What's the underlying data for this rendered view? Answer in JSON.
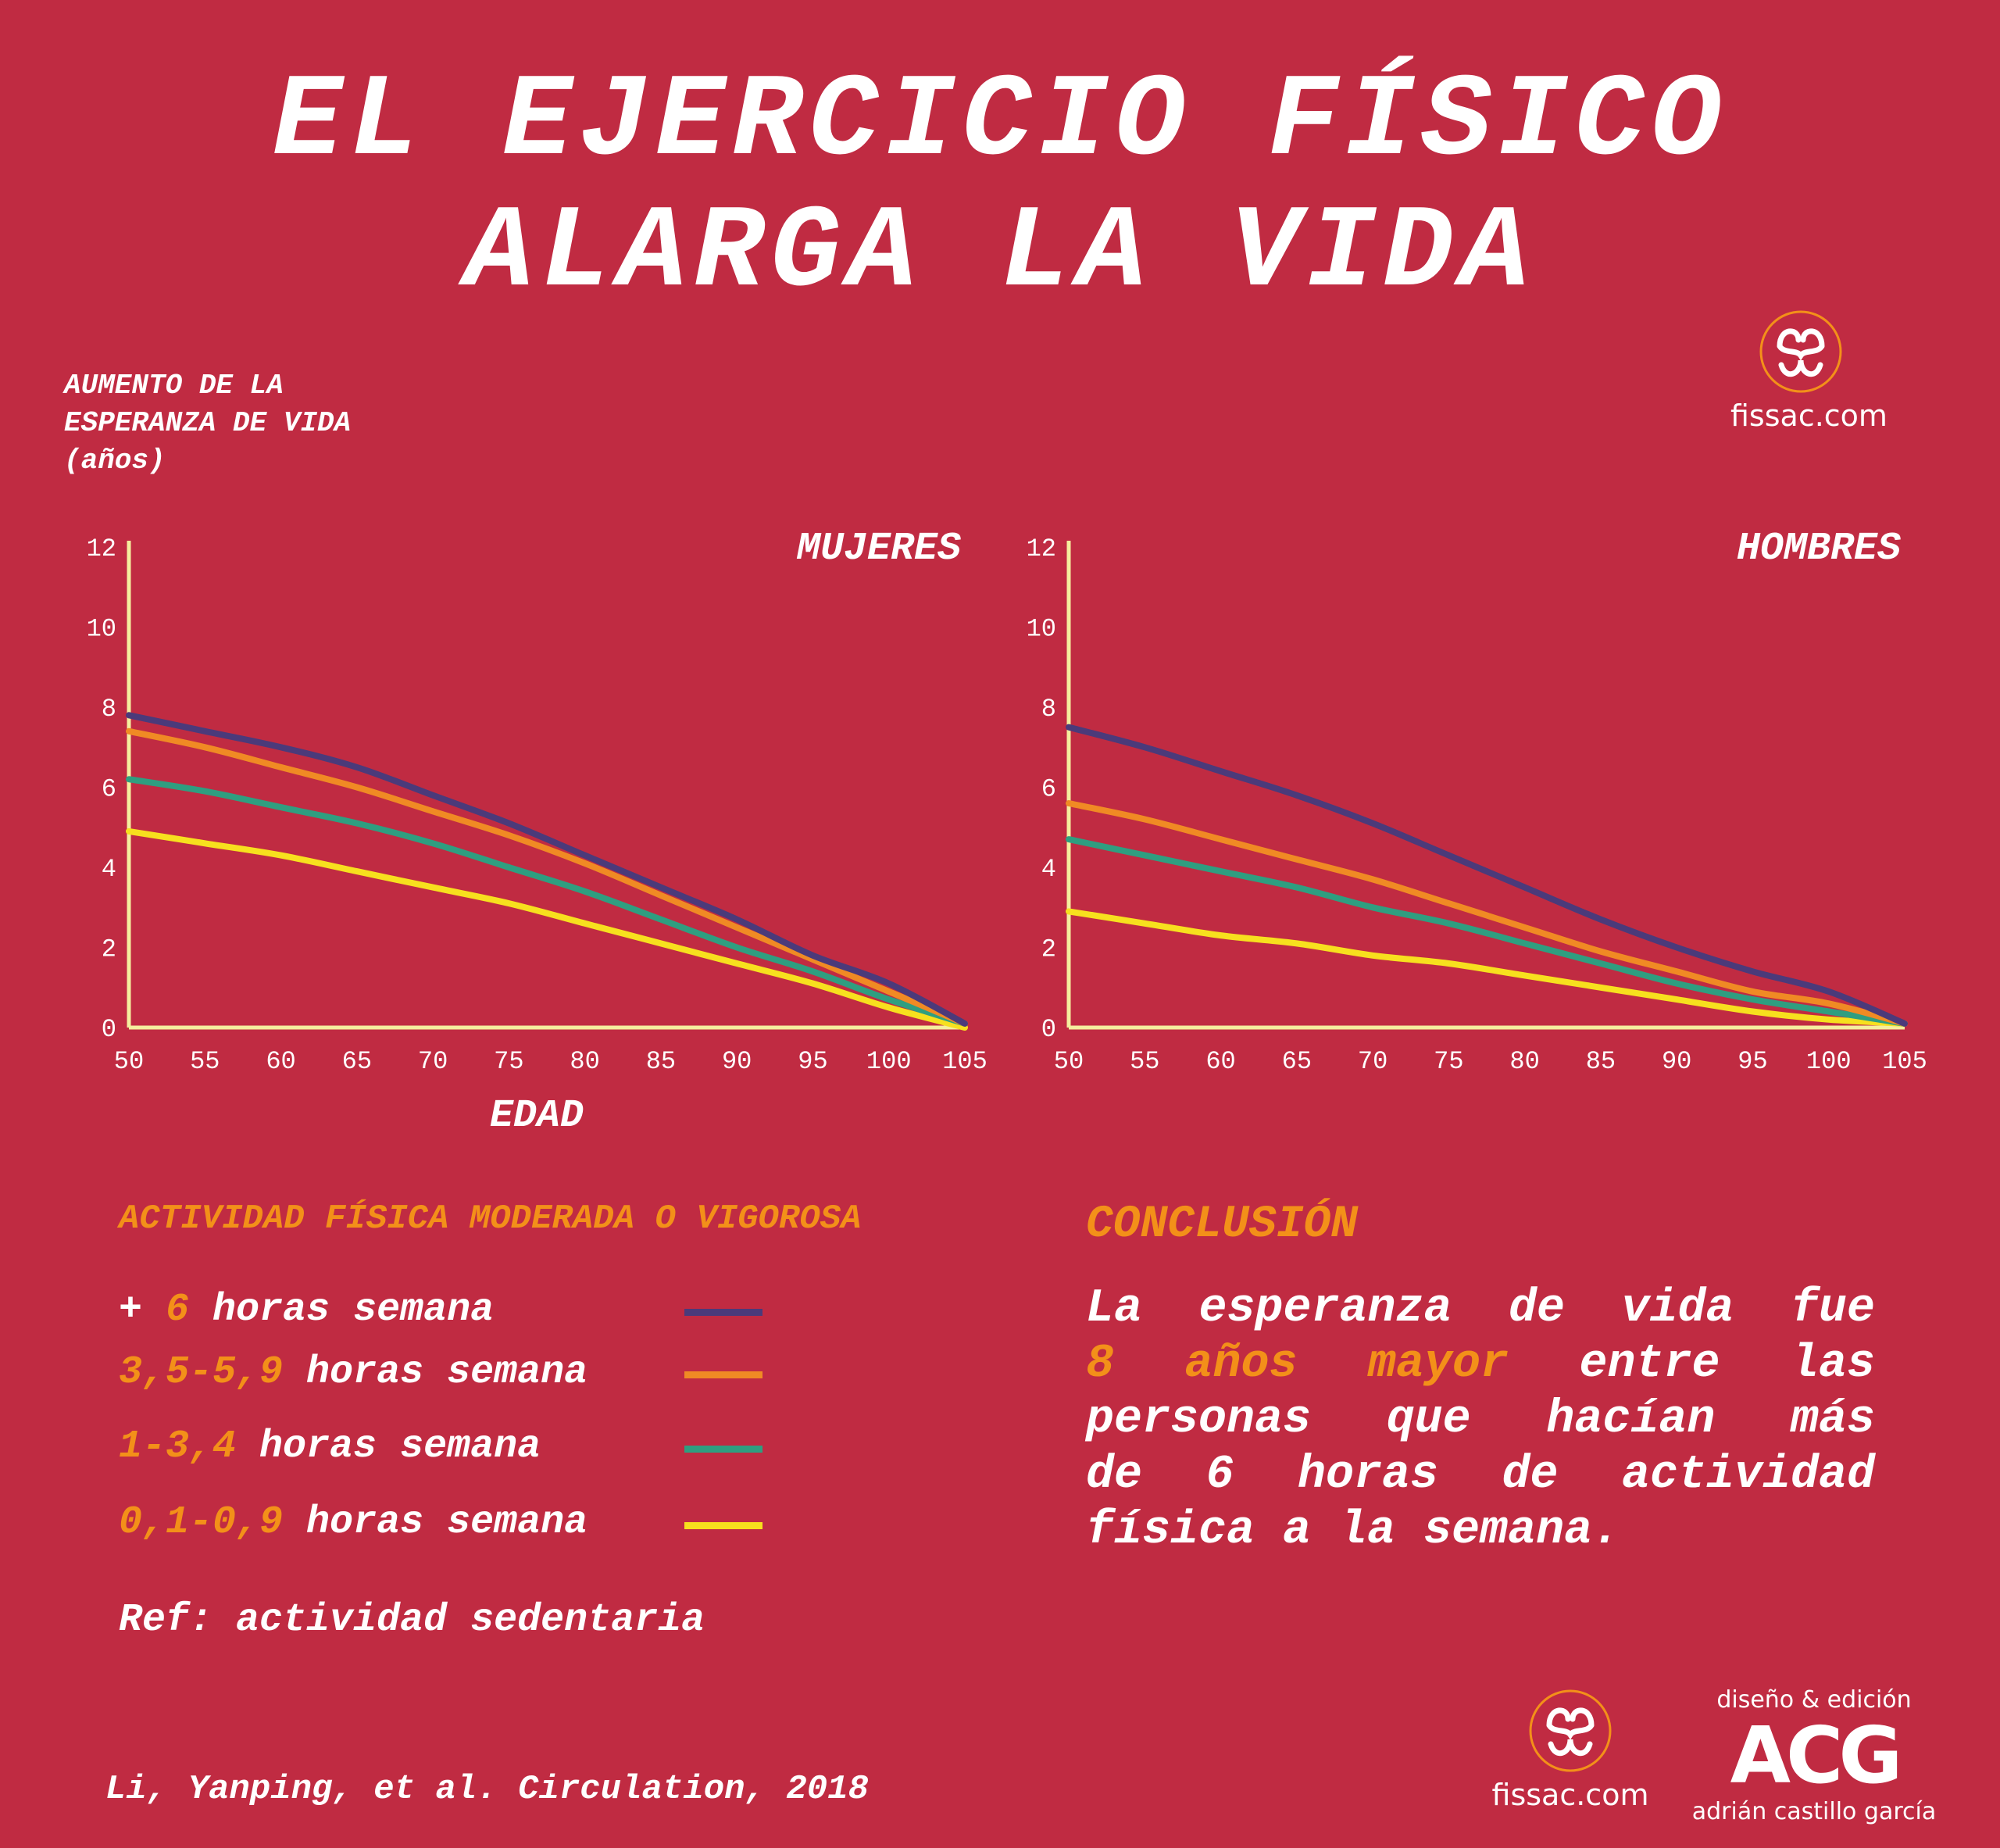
{
  "title": {
    "line1": "EL EJERCICIO FÍSICO",
    "line2": "ALARGA LA VIDA"
  },
  "y_axis_label": {
    "line1": "AUMENTO DE LA",
    "line2": "ESPERANZA DE VIDA",
    "line3": "(años)"
  },
  "x_axis_label": "EDAD",
  "logo": {
    "text": "fissac.com",
    "icon": "fissac-logo-icon"
  },
  "colors": {
    "background": "#c02b42",
    "accent": "#f39019",
    "axis": "#f5ee9e"
  },
  "chart_data": [
    {
      "type": "line",
      "title": "MUJERES",
      "x": [
        50,
        55,
        60,
        65,
        70,
        75,
        80,
        85,
        90,
        95,
        100,
        105
      ],
      "xlim": [
        50,
        105
      ],
      "ylim": [
        0,
        12
      ],
      "xticks": [
        "50",
        "55",
        "60",
        "65",
        "70",
        "75",
        "80",
        "85",
        "90",
        "95",
        "100",
        "105"
      ],
      "yticks": [
        "0",
        "2",
        "4",
        "6",
        "8",
        "10",
        "12"
      ],
      "grid": false,
      "series": [
        {
          "name": "+ 6 horas semana",
          "color": "#4b3a7a",
          "values": [
            7.8,
            7.4,
            7.0,
            6.5,
            5.8,
            5.1,
            4.3,
            3.5,
            2.7,
            1.8,
            1.1,
            0.1
          ]
        },
        {
          "name": "3,5-5,9 horas semana",
          "color": "#f08a24",
          "values": [
            7.4,
            7.0,
            6.5,
            6.0,
            5.4,
            4.8,
            4.1,
            3.3,
            2.5,
            1.7,
            0.9,
            0.1
          ]
        },
        {
          "name": "1-3,4 horas semana",
          "color": "#2f9e80",
          "values": [
            6.2,
            5.9,
            5.5,
            5.1,
            4.6,
            4.0,
            3.4,
            2.7,
            2.0,
            1.4,
            0.7,
            0.1
          ]
        },
        {
          "name": "0,1-0,9 horas semana",
          "color": "#f7e01e",
          "values": [
            4.9,
            4.6,
            4.3,
            3.9,
            3.5,
            3.1,
            2.6,
            2.1,
            1.6,
            1.1,
            0.5,
            0.0
          ]
        }
      ]
    },
    {
      "type": "line",
      "title": "HOMBRES",
      "x": [
        50,
        55,
        60,
        65,
        70,
        75,
        80,
        85,
        90,
        95,
        100,
        105
      ],
      "xlim": [
        50,
        105
      ],
      "ylim": [
        0,
        12
      ],
      "xticks": [
        "50",
        "55",
        "60",
        "65",
        "70",
        "75",
        "80",
        "85",
        "90",
        "95",
        "100",
        "105"
      ],
      "yticks": [
        "0",
        "2",
        "4",
        "6",
        "8",
        "10",
        "12"
      ],
      "grid": false,
      "series": [
        {
          "name": "+ 6 horas semana",
          "color": "#4b3a7a",
          "values": [
            7.5,
            7.0,
            6.4,
            5.8,
            5.1,
            4.3,
            3.5,
            2.7,
            2.0,
            1.4,
            0.9,
            0.1
          ]
        },
        {
          "name": "3,5-5,9 horas semana",
          "color": "#f08a24",
          "values": [
            5.6,
            5.2,
            4.7,
            4.2,
            3.7,
            3.1,
            2.5,
            1.9,
            1.4,
            0.9,
            0.6,
            0.1
          ]
        },
        {
          "name": "1-3,4 horas semana",
          "color": "#2f9e80",
          "values": [
            4.7,
            4.3,
            3.9,
            3.5,
            3.0,
            2.6,
            2.1,
            1.6,
            1.1,
            0.7,
            0.4,
            0.1
          ]
        },
        {
          "name": "0,1-0,9 horas semana",
          "color": "#f7e01e",
          "values": [
            2.9,
            2.6,
            2.3,
            2.1,
            1.8,
            1.6,
            1.3,
            1.0,
            0.7,
            0.4,
            0.2,
            0.1
          ]
        }
      ]
    }
  ],
  "legend": {
    "heading": "ACTIVIDAD FÍSICA MODERADA O VIGOROSA",
    "items": [
      {
        "prefix": "+ ",
        "value": "6",
        "suffix": " horas semana",
        "color": "#4b3a7a"
      },
      {
        "prefix": "",
        "value": "3,5-5,9",
        "suffix": " horas semana",
        "color": "#f08a24"
      },
      {
        "prefix": "",
        "value": "1-3,4",
        "suffix": " horas semana",
        "color": "#2f9e80"
      },
      {
        "prefix": "",
        "value": "0,1-0,9",
        "suffix": " horas semana",
        "color": "#f7e01e"
      }
    ],
    "reference": "Ref: actividad sedentaria"
  },
  "conclusion": {
    "heading": "CONCLUSIÓN",
    "line1": "La esperanza de vida fue",
    "highlight": "8 años mayor",
    "line2_rest": "entre las",
    "line3": "personas que hacían más",
    "line4": "de 6 horas de actividad",
    "line5": "física a la semana."
  },
  "citation": "Li, Yanping, et al. Circulation, 2018",
  "credits": {
    "line1": "diseño & edición",
    "brand": "ACG",
    "name": "adrián castillo garcía"
  }
}
